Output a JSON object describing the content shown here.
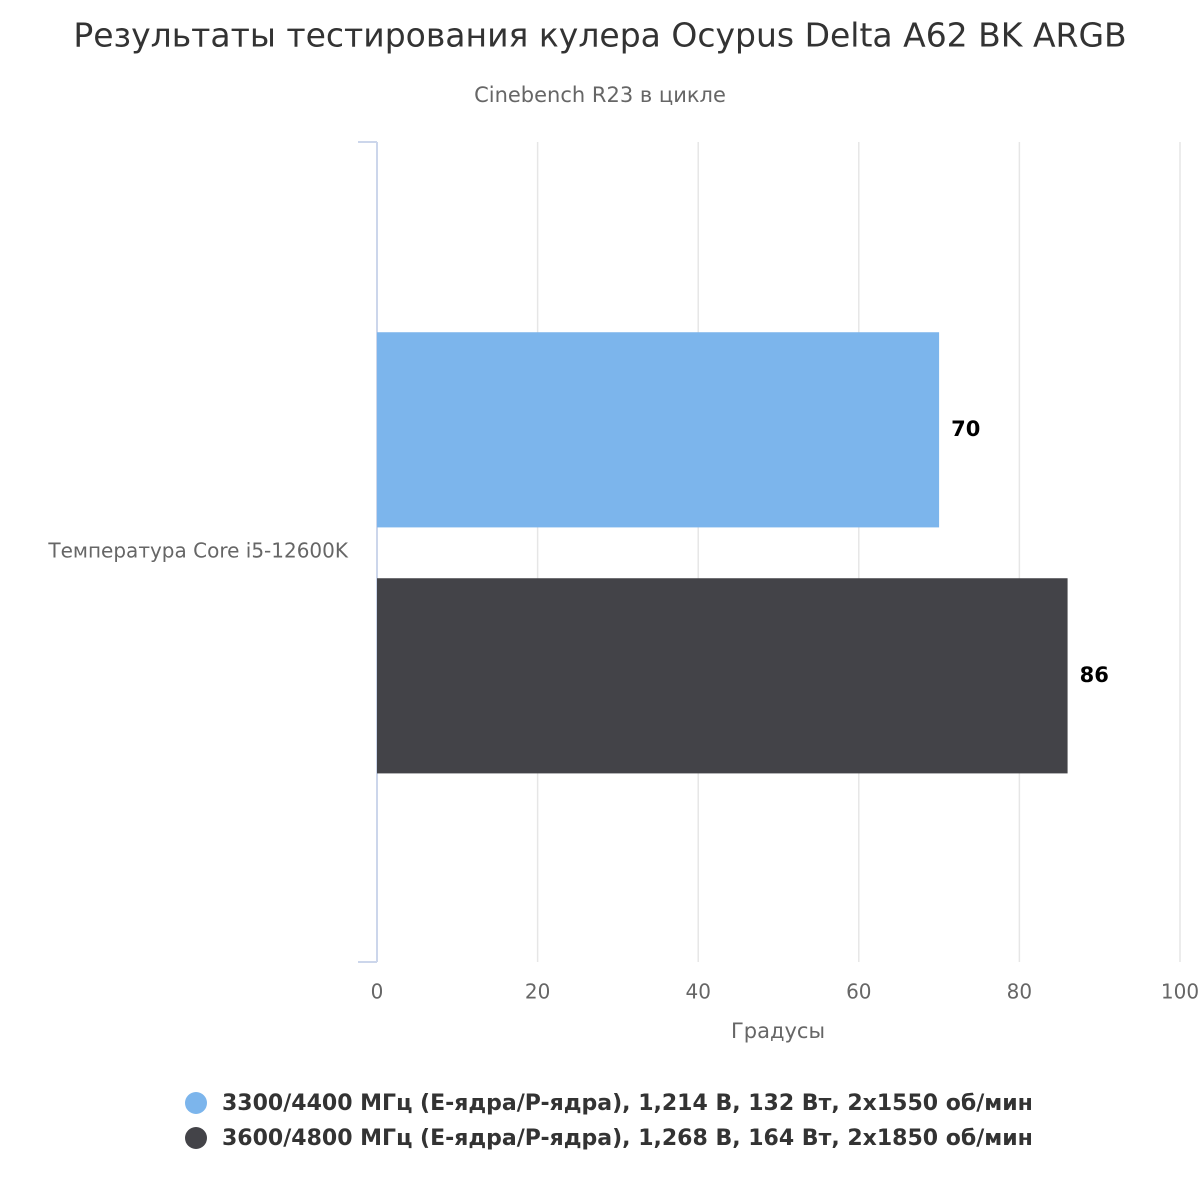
{
  "chart_data": {
    "type": "bar",
    "orientation": "horizontal",
    "title": "Результаты тестирования кулера Ocypus Delta A62 BK ARGB",
    "subtitle": "Cinebench R23 в цикле",
    "categories": [
      "Температура Core i5-12600K"
    ],
    "series": [
      {
        "name": "3300/4400 МГц (E-ядра/P-ядра), 1,214 В, 132 Вт, 2x1550 об/мин",
        "color": "#7cb5ec",
        "values": [
          70
        ]
      },
      {
        "name": "3600/4800 МГц (E-ядра/P-ядра), 1,268 В, 164 Вт, 2x1850 об/мин",
        "color": "#434348",
        "values": [
          86
        ]
      }
    ],
    "xlabel": "Градусы",
    "xlim": [
      0,
      100
    ],
    "xticks": [
      0,
      20,
      40,
      60,
      80,
      100
    ],
    "grid": true
  }
}
